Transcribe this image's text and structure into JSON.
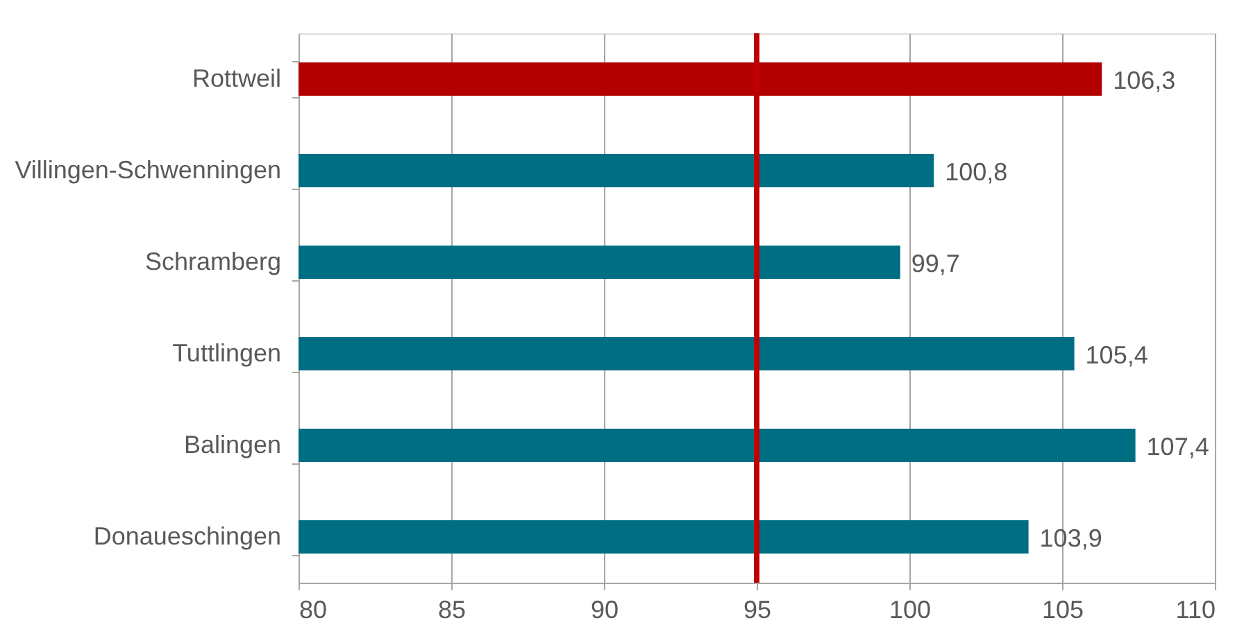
{
  "chart_data": {
    "type": "bar",
    "orientation": "horizontal",
    "categories": [
      "Rottweil",
      "Villingen-Schwenningen",
      "Schramberg",
      "Tuttlingen",
      "Balingen",
      "Donaueschingen"
    ],
    "values": [
      106.3,
      100.8,
      99.7,
      105.4,
      107.4,
      103.9
    ],
    "colors": [
      "#b20000",
      "#006e82",
      "#006e82",
      "#006e82",
      "#006e82",
      "#006e82"
    ],
    "value_labels": [
      "106,3",
      "100,8",
      "99,7",
      "105,4",
      "107,4",
      "103,9"
    ],
    "xlim": [
      80,
      110
    ],
    "xticks": [
      80,
      85,
      90,
      95,
      100,
      105,
      110
    ],
    "grid": "x",
    "ref_lines": [
      {
        "axis": "x",
        "value": 95,
        "color": "#c00000"
      }
    ]
  }
}
